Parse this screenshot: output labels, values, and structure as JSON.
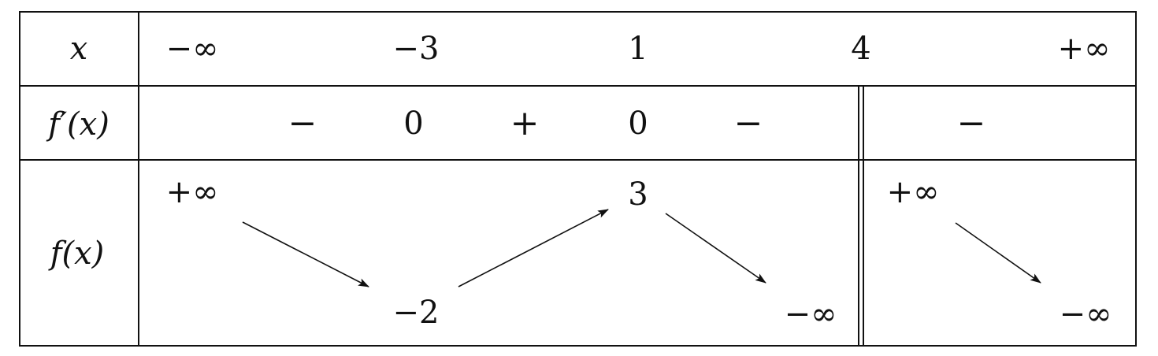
{
  "header": {
    "x": "x",
    "fprime": "f′(x)",
    "f": "f(x)"
  },
  "x_values": [
    "−∞",
    "−3",
    "1",
    "4",
    "+∞"
  ],
  "derivative_row": {
    "signs": [
      "−",
      "+",
      "−",
      "−"
    ],
    "zeros": [
      "0",
      "0"
    ]
  },
  "function_row": {
    "values": [
      "+∞",
      "−2",
      "3",
      "−∞",
      "+∞",
      "−∞"
    ]
  },
  "colors": {
    "ink": "#111111",
    "background": "#ffffff"
  }
}
